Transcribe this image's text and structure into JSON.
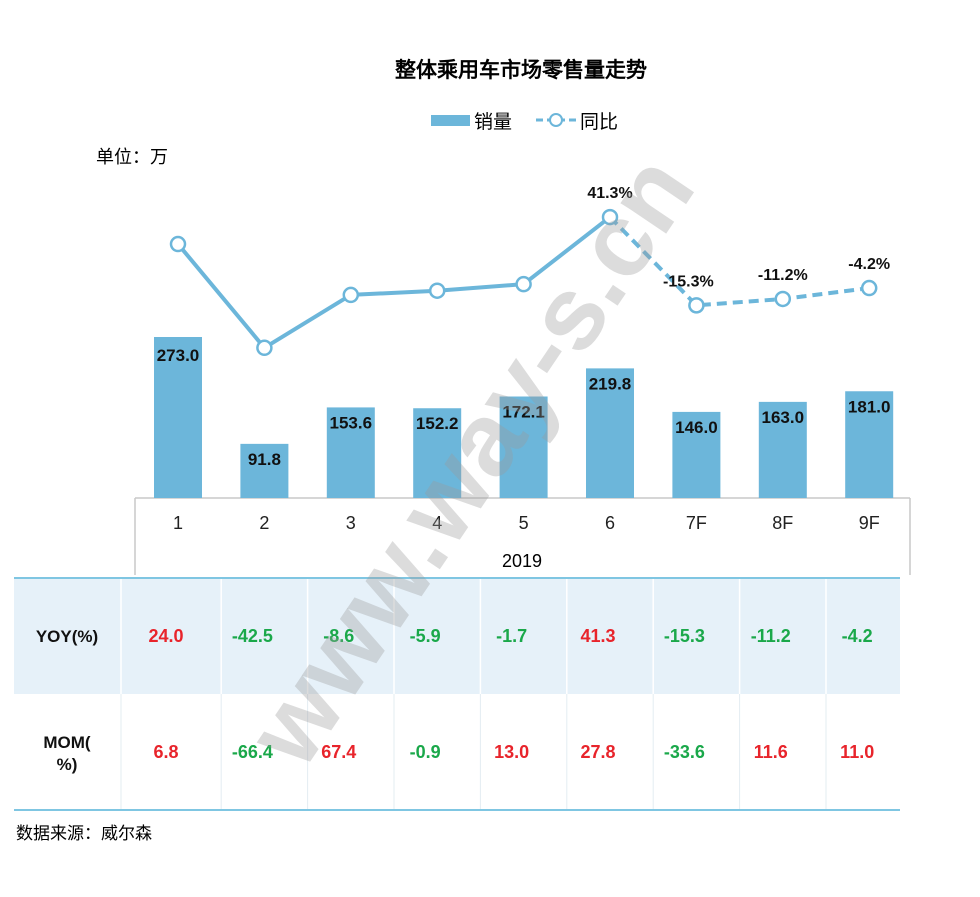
{
  "chart_data": {
    "type": "bar",
    "title": "整体乘用车市场零售量走势",
    "unit_label": "单位：万",
    "legend": {
      "placement": "top-center",
      "items": [
        {
          "label": "销量",
          "kind": "bar"
        },
        {
          "label": "同比",
          "kind": "line"
        }
      ]
    },
    "categories": [
      "1",
      "2",
      "3",
      "4",
      "5",
      "6",
      "7F",
      "8F",
      "9F"
    ],
    "xlabel": "2019",
    "ylabel": "",
    "ylim": [
      0,
      400
    ],
    "grid": false,
    "series": [
      {
        "name": "销量",
        "type": "bar",
        "values": [
          273.0,
          91.8,
          153.6,
          152.2,
          172.1,
          219.8,
          146.0,
          163.0,
          181.0
        ],
        "labels": [
          "273.0",
          "91.8",
          "153.6",
          "152.2",
          "172.1",
          "219.8",
          "146.0",
          "163.0",
          "181.0"
        ]
      },
      {
        "name": "同比",
        "type": "line",
        "unit": "%",
        "values": [
          24.0,
          -42.5,
          -8.6,
          -5.9,
          -1.7,
          41.3,
          -15.3,
          -11.2,
          -4.2
        ],
        "dashed_from_index": 5,
        "point_labels": [
          "",
          "",
          "",
          "",
          "",
          "41.3%",
          "-15.3%",
          "-11.2%",
          "-4.2%"
        ]
      }
    ],
    "table": {
      "rows": [
        {
          "header": "YOY(%)",
          "values": [
            "24.0",
            "-42.5",
            "-8.6",
            "-5.9",
            "-1.7",
            "41.3",
            "-15.3",
            "-11.2",
            "-4.2"
          ]
        },
        {
          "header": "MOM(%)",
          "values": [
            "6.8",
            "-66.4",
            "67.4",
            "-0.9",
            "13.0",
            "27.8",
            "-33.6",
            "11.6",
            "11.0"
          ]
        }
      ]
    }
  },
  "source": "数据来源：威尔森",
  "watermark": "www.way-s.cn",
  "colors": {
    "bar": "#6cb6da",
    "line": "#6cb6da",
    "positive": "#e8242b",
    "negative": "#1aa84a",
    "table_row_bg": "#e6f1f9",
    "table_rule": "#7fc6e2",
    "axis_box": "#c8c8c8"
  }
}
